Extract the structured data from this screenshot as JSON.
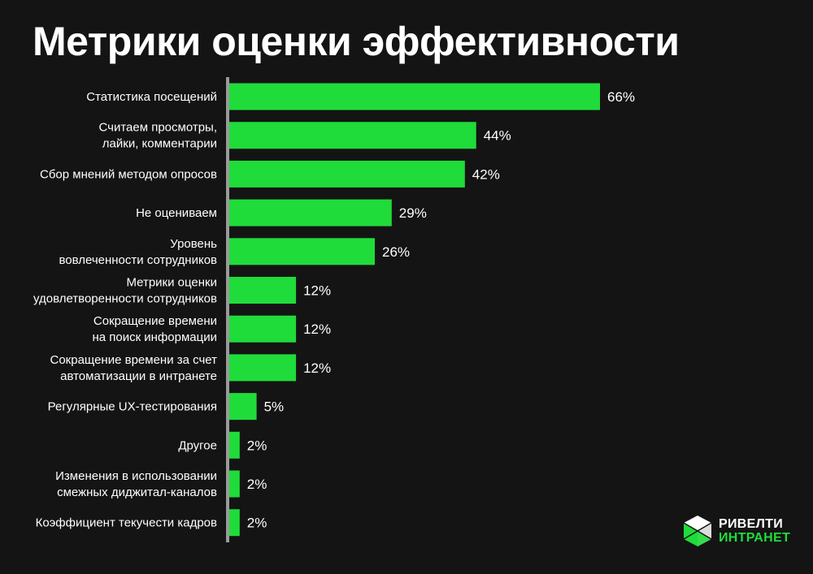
{
  "colors": {
    "background": "#141414",
    "bar": "#1fdc3a",
    "text": "#ffffff",
    "axis": "#9a9a9a"
  },
  "chart_data": {
    "type": "bar",
    "orientation": "horizontal",
    "title": "Метрики оценки эффективности",
    "unit": "%",
    "categories": [
      [
        "Статистика посещений"
      ],
      [
        "Считаем просмотры,",
        "лайки, комментарии"
      ],
      [
        "Сбор мнений методом опросов"
      ],
      [
        "Не оцениваем"
      ],
      [
        "Уровень",
        "вовлеченности сотрудников"
      ],
      [
        "Метрики оценки",
        "удовлетворенности сотрудников"
      ],
      [
        "Сокращение времени",
        "на поиск информации"
      ],
      [
        "Сокращение времени за счет",
        "автоматизации в интранете"
      ],
      [
        "Регулярные UX-тестирования"
      ],
      [
        "Другое"
      ],
      [
        "Изменения в использовании",
        "смежных диджитал-каналов"
      ],
      [
        "Коэффициент текучести кадров"
      ]
    ],
    "values": [
      66,
      44,
      42,
      29,
      26,
      12,
      12,
      12,
      5,
      2,
      2,
      2
    ],
    "value_labels": [
      "66%",
      "44%",
      "42%",
      "29%",
      "26%",
      "12%",
      "12%",
      "12%",
      "5%",
      "2%",
      "2%",
      "2%"
    ],
    "xlim": [
      0,
      66
    ],
    "grid": false,
    "legend": "none"
  },
  "logo": {
    "line1": "РИВЕЛТИ",
    "line2": "ИНТРАНЕТ",
    "icon": "cube-logo-icon"
  }
}
